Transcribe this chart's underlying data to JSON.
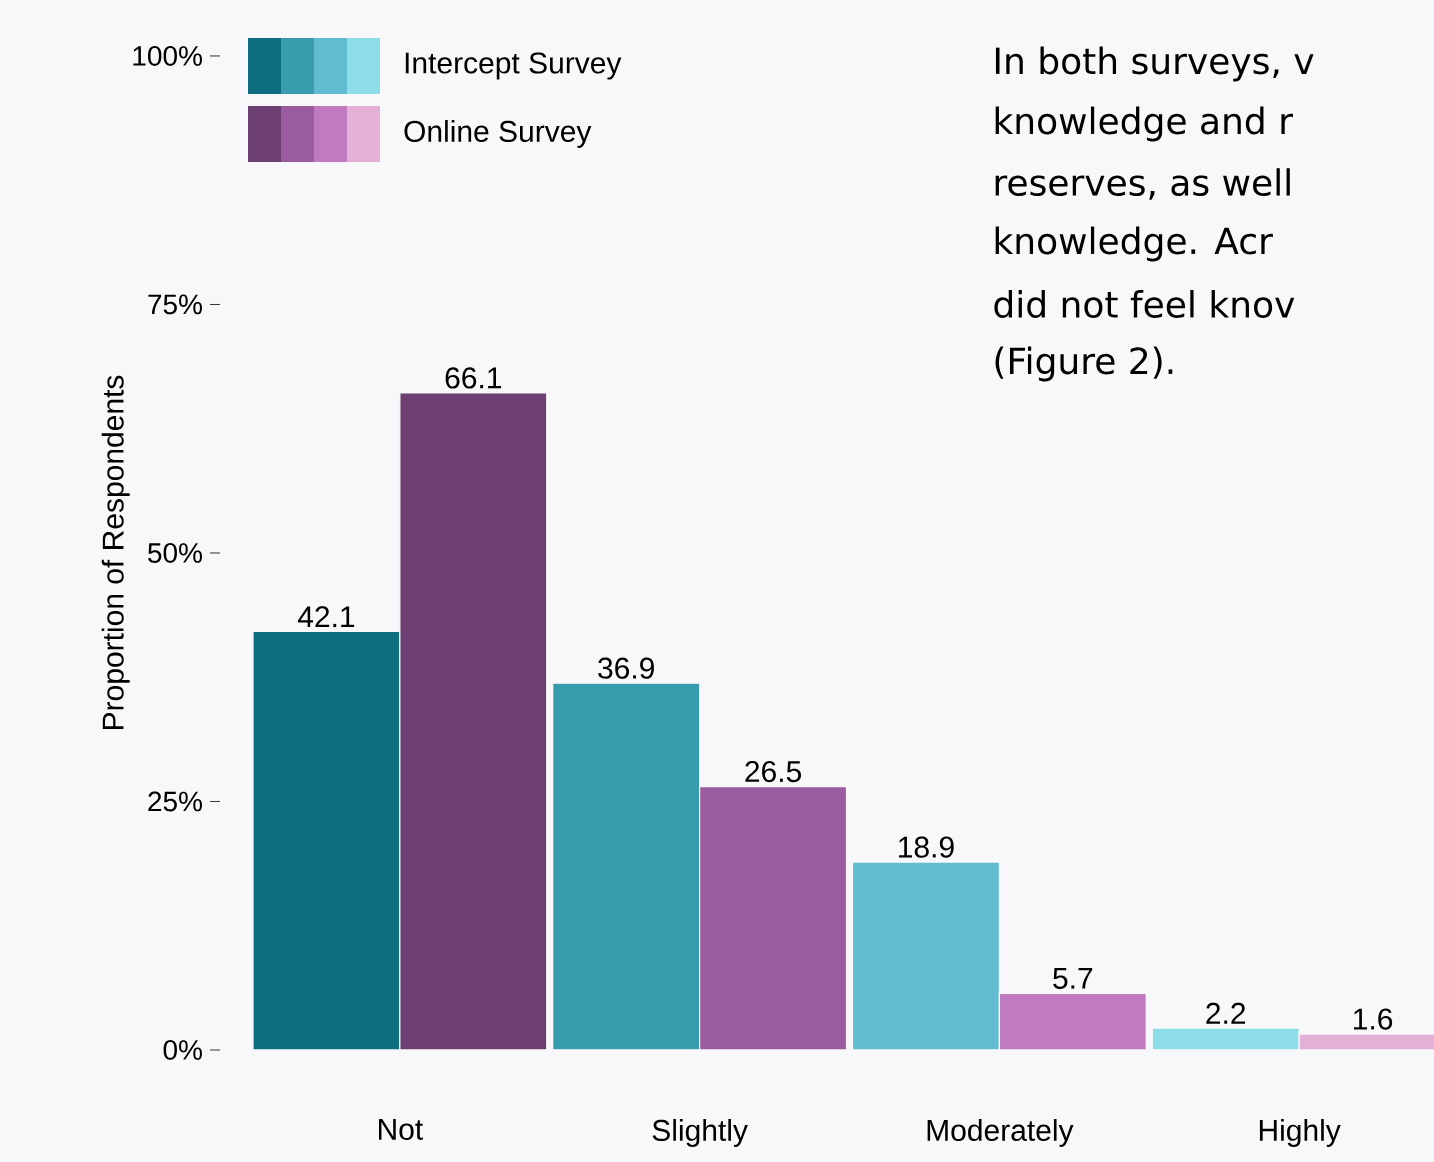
{
  "chart_data": {
    "type": "bar",
    "ylabel": "Proportion of Respondents",
    "categories": [
      "Not",
      "Slightly",
      "Moderately",
      "Highly"
    ],
    "series": [
      {
        "name": "Intercept Survey",
        "colors": [
          "#0e6e80",
          "#389caf",
          "#62bcd0",
          "#8ddde9"
        ],
        "values": [
          42.1,
          36.9,
          18.9,
          2.2
        ]
      },
      {
        "name": "Online Survey",
        "colors": [
          "#6c3e72",
          "#9a5c9e",
          "#c07bbe",
          "#e4b0d8"
        ],
        "values": [
          66.1,
          26.5,
          5.7,
          1.6
        ]
      }
    ],
    "ylim": [
      0,
      100
    ],
    "yticks": [
      {
        "value": 0,
        "label": "0%"
      },
      {
        "value": 25,
        "label": "25%"
      },
      {
        "value": 50,
        "label": "50%"
      },
      {
        "value": 75,
        "label": "75%"
      },
      {
        "value": 100,
        "label": "100%"
      }
    ],
    "data_labels": true,
    "legend": "top left",
    "grid": false,
    "annotations": [
      "In both surveys, v",
      "knowledge and r",
      "reserves, as well",
      "knowledge. Acr",
      "did not feel knov",
      "(Figure 2)."
    ]
  }
}
